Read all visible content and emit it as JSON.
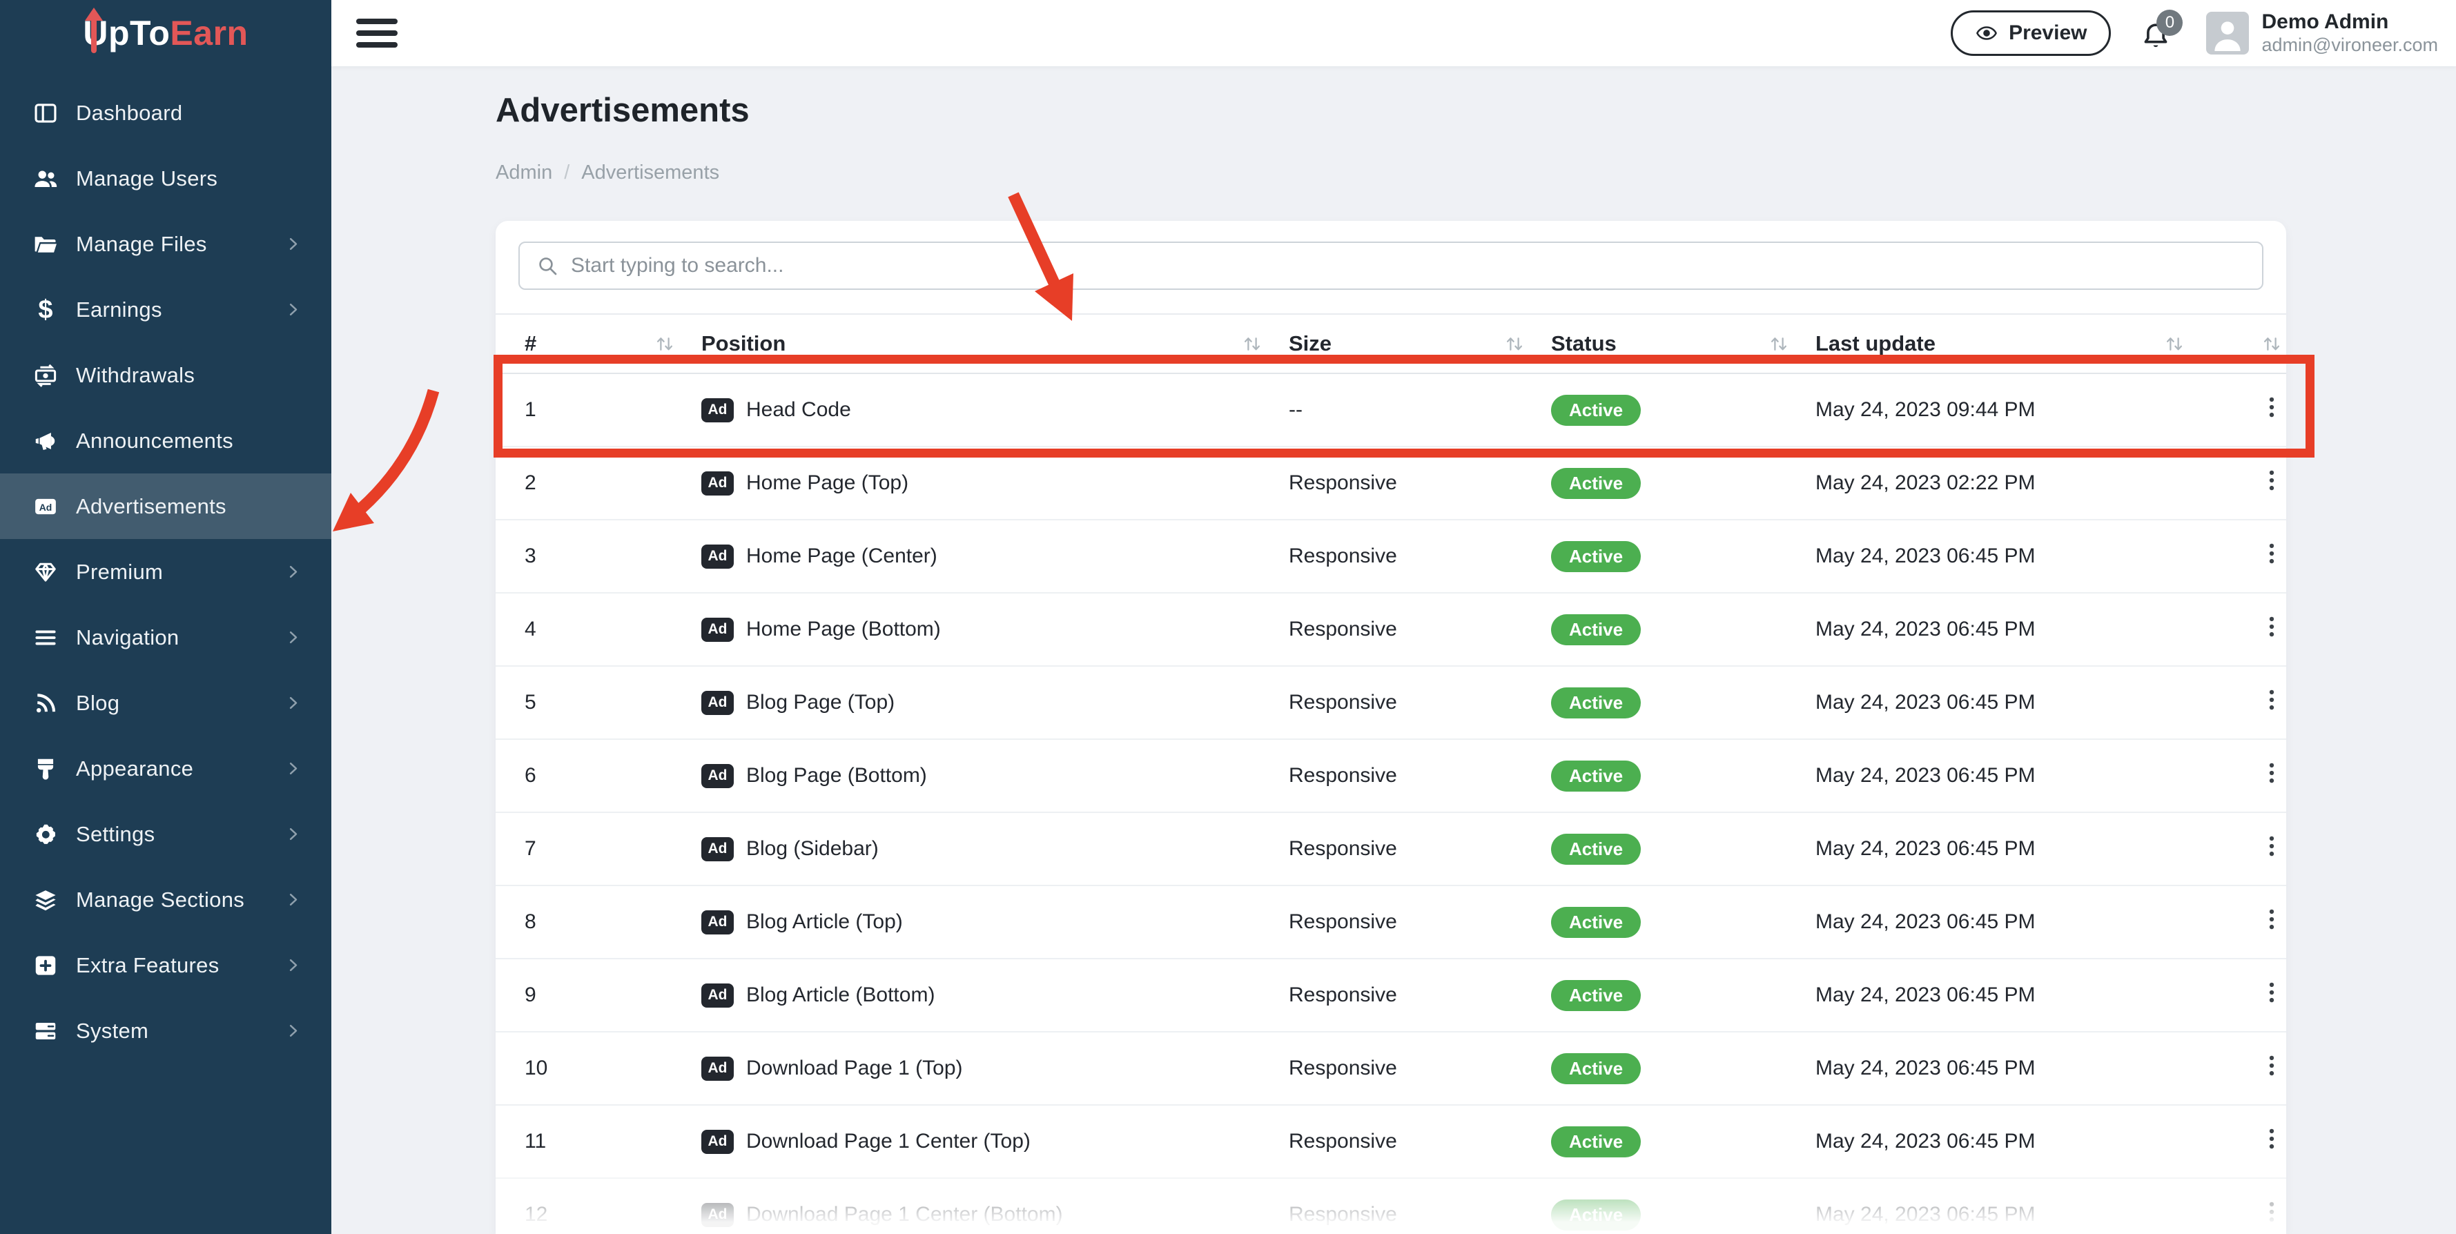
{
  "brand": {
    "name_primary": "UpTo",
    "name_secondary": "Earn"
  },
  "sidebar": {
    "items": [
      {
        "label": "Dashboard",
        "icon": "dashboard-icon",
        "has_children": false,
        "active": false
      },
      {
        "label": "Manage Users",
        "icon": "users-icon",
        "has_children": false,
        "active": false
      },
      {
        "label": "Manage Files",
        "icon": "folder-icon",
        "has_children": true,
        "active": false
      },
      {
        "label": "Earnings",
        "icon": "dollar-icon",
        "has_children": true,
        "active": false
      },
      {
        "label": "Withdrawals",
        "icon": "exchange-icon",
        "has_children": false,
        "active": false
      },
      {
        "label": "Announcements",
        "icon": "megaphone-icon",
        "has_children": false,
        "active": false
      },
      {
        "label": "Advertisements",
        "icon": "ad-icon",
        "has_children": false,
        "active": true
      },
      {
        "label": "Premium",
        "icon": "gem-icon",
        "has_children": true,
        "active": false
      },
      {
        "label": "Navigation",
        "icon": "list-icon",
        "has_children": true,
        "active": false
      },
      {
        "label": "Blog",
        "icon": "rss-icon",
        "has_children": true,
        "active": false
      },
      {
        "label": "Appearance",
        "icon": "brush-icon",
        "has_children": true,
        "active": false
      },
      {
        "label": "Settings",
        "icon": "gear-icon",
        "has_children": true,
        "active": false
      },
      {
        "label": "Manage Sections",
        "icon": "layers-icon",
        "has_children": true,
        "active": false
      },
      {
        "label": "Extra Features",
        "icon": "plus-square-icon",
        "has_children": true,
        "active": false
      },
      {
        "label": "System",
        "icon": "server-icon",
        "has_children": true,
        "active": false
      }
    ]
  },
  "topbar": {
    "preview_label": "Preview",
    "notification_count": "0",
    "user": {
      "name": "Demo Admin",
      "email": "admin@vironeer.com"
    }
  },
  "page": {
    "title": "Advertisements",
    "breadcrumb": [
      "Admin",
      "Advertisements"
    ]
  },
  "search": {
    "placeholder": "Start typing to search..."
  },
  "table": {
    "ad_badge_label": "Ad",
    "columns": [
      "#",
      "Position",
      "Size",
      "Status",
      "Last update",
      ""
    ],
    "rows": [
      {
        "num": "1",
        "position": "Head Code",
        "size": "--",
        "status": "Active",
        "updated": "May 24, 2023 09:44 PM"
      },
      {
        "num": "2",
        "position": "Home Page (Top)",
        "size": "Responsive",
        "status": "Active",
        "updated": "May 24, 2023 02:22 PM"
      },
      {
        "num": "3",
        "position": "Home Page (Center)",
        "size": "Responsive",
        "status": "Active",
        "updated": "May 24, 2023 06:45 PM"
      },
      {
        "num": "4",
        "position": "Home Page (Bottom)",
        "size": "Responsive",
        "status": "Active",
        "updated": "May 24, 2023 06:45 PM"
      },
      {
        "num": "5",
        "position": "Blog Page (Top)",
        "size": "Responsive",
        "status": "Active",
        "updated": "May 24, 2023 06:45 PM"
      },
      {
        "num": "6",
        "position": "Blog Page (Bottom)",
        "size": "Responsive",
        "status": "Active",
        "updated": "May 24, 2023 06:45 PM"
      },
      {
        "num": "7",
        "position": "Blog (Sidebar)",
        "size": "Responsive",
        "status": "Active",
        "updated": "May 24, 2023 06:45 PM"
      },
      {
        "num": "8",
        "position": "Blog Article (Top)",
        "size": "Responsive",
        "status": "Active",
        "updated": "May 24, 2023 06:45 PM"
      },
      {
        "num": "9",
        "position": "Blog Article (Bottom)",
        "size": "Responsive",
        "status": "Active",
        "updated": "May 24, 2023 06:45 PM"
      },
      {
        "num": "10",
        "position": "Download Page 1 (Top)",
        "size": "Responsive",
        "status": "Active",
        "updated": "May 24, 2023 06:45 PM"
      },
      {
        "num": "11",
        "position": "Download Page 1 Center (Top)",
        "size": "Responsive",
        "status": "Active",
        "updated": "May 24, 2023 06:45 PM"
      },
      {
        "num": "12",
        "position": "Download Page 1 Center (Bottom)",
        "size": "Responsive",
        "status": "Active",
        "updated": "May 24, 2023 06:45 PM"
      }
    ]
  },
  "colors": {
    "sidebar_bg": "#1e3d54",
    "brand_accent": "#e25757",
    "annotation_red": "#e73e27",
    "status_active_green": "#4caf50"
  }
}
